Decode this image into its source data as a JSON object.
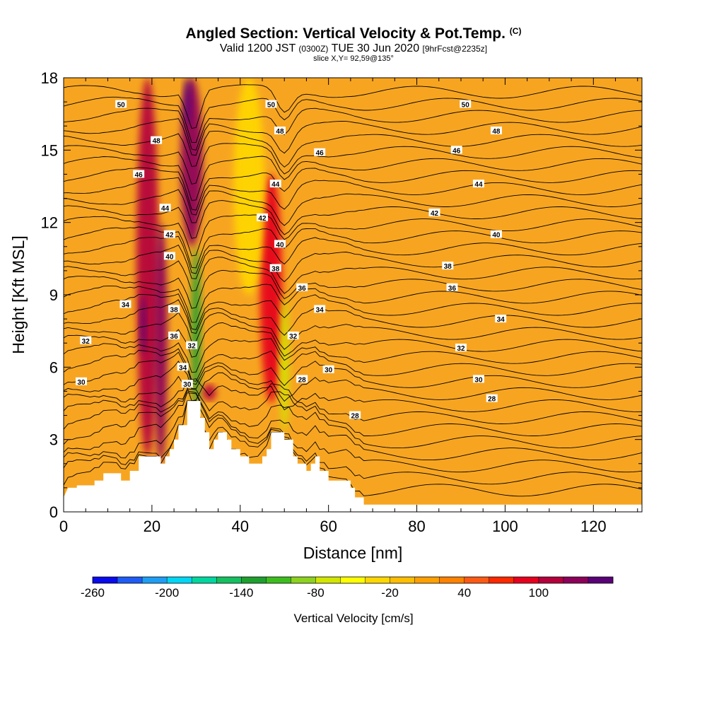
{
  "header": {
    "title_main": "Angled Section: Vertical Velocity & Pot.Temp.",
    "title_tag": "(C)",
    "valid_prefix": "Valid 1200 JST",
    "valid_utc": "(0300Z)",
    "valid_date": "TUE 30 Jun 2020",
    "forecast_info": "[9hrFcst@2235z]",
    "slice_info": "slice X,Y= 92,59@135°"
  },
  "chart_data": {
    "type": "heatmap",
    "xlabel": "Distance [nm]",
    "ylabel": "Height [Kft MSL]",
    "xlim": [
      0,
      131
    ],
    "ylim": [
      0,
      18
    ],
    "x_ticks": [
      0,
      20,
      40,
      60,
      80,
      100,
      120
    ],
    "y_ticks": [
      0,
      3,
      6,
      9,
      12,
      15,
      18
    ],
    "background_color": "#f7a521",
    "terrain": [
      [
        0,
        0.6
      ],
      [
        1,
        1.0
      ],
      [
        3,
        1.0
      ],
      [
        3,
        1.1
      ],
      [
        7,
        1.1
      ],
      [
        7,
        1.3
      ],
      [
        9,
        1.3
      ],
      [
        9,
        1.6
      ],
      [
        13,
        1.6
      ],
      [
        13,
        1.3
      ],
      [
        15,
        1.3
      ],
      [
        15,
        1.7
      ],
      [
        17,
        1.7
      ],
      [
        17,
        2.3
      ],
      [
        22,
        2.3
      ],
      [
        22,
        2.0
      ],
      [
        23,
        2.0
      ],
      [
        23,
        2.3
      ],
      [
        24,
        2.3
      ],
      [
        24,
        2.6
      ],
      [
        25,
        2.6
      ],
      [
        25,
        3.0
      ],
      [
        26,
        3.0
      ],
      [
        26,
        3.6
      ],
      [
        28,
        3.6
      ],
      [
        28,
        4.6
      ],
      [
        31,
        4.6
      ],
      [
        31,
        3.9
      ],
      [
        32,
        3.9
      ],
      [
        32,
        3.3
      ],
      [
        33,
        3.3
      ],
      [
        33,
        2.6
      ],
      [
        34,
        2.6
      ],
      [
        34,
        3.0
      ],
      [
        35,
        3.0
      ],
      [
        35,
        3.3
      ],
      [
        37,
        3.3
      ],
      [
        37,
        3.0
      ],
      [
        38,
        3.0
      ],
      [
        38,
        2.6
      ],
      [
        40,
        2.6
      ],
      [
        40,
        2.3
      ],
      [
        42,
        2.3
      ],
      [
        42,
        2.0
      ],
      [
        45,
        2.0
      ],
      [
        45,
        2.3
      ],
      [
        46,
        2.3
      ],
      [
        46,
        2.6
      ],
      [
        47,
        2.6
      ],
      [
        47,
        3.3
      ],
      [
        50,
        3.3
      ],
      [
        50,
        3.0
      ],
      [
        52,
        3.0
      ],
      [
        52,
        2.3
      ],
      [
        53,
        2.3
      ],
      [
        53,
        2.0
      ],
      [
        55,
        2.0
      ],
      [
        55,
        1.7
      ],
      [
        56,
        1.7
      ],
      [
        56,
        2.0
      ],
      [
        57,
        2.0
      ],
      [
        57,
        2.3
      ],
      [
        58,
        2.3
      ],
      [
        58,
        1.7
      ],
      [
        60,
        1.7
      ],
      [
        60,
        1.3
      ],
      [
        65,
        1.3
      ],
      [
        65,
        1.0
      ],
      [
        66,
        1.0
      ],
      [
        66,
        0.6
      ],
      [
        68,
        0.6
      ],
      [
        68,
        0.3
      ],
      [
        131,
        0.3
      ]
    ],
    "velocity_features": [
      {
        "label": "updraft",
        "x": 19,
        "y_bottom": 2.3,
        "y_top": 18,
        "width": 5,
        "value": 80
      },
      {
        "label": "updraft",
        "x": 22,
        "y_bottom": 2.0,
        "y_top": 12,
        "width": 3,
        "value": 100
      },
      {
        "label": "updraft-core",
        "x": 18,
        "y_bottom": 6.5,
        "y_top": 9,
        "width": 1.2,
        "value": 110
      },
      {
        "label": "updraft",
        "x": 29,
        "y_bottom": 11,
        "y_top": 18,
        "width": 5,
        "value": 90
      },
      {
        "label": "updraft-core",
        "x": 28,
        "y_bottom": 16,
        "y_top": 18,
        "width": 1.5,
        "value": 110
      },
      {
        "label": "updraft",
        "x": 47,
        "y_bottom": 4.5,
        "y_top": 14,
        "width": 5,
        "value": 60
      },
      {
        "label": "updraft",
        "x": 33,
        "y_bottom": 4.6,
        "y_top": 5.3,
        "width": 3,
        "value": 70
      },
      {
        "label": "downdraft",
        "x": 30,
        "y_bottom": 4.0,
        "y_top": 11,
        "width": 2,
        "value": -170
      },
      {
        "label": "downdraft",
        "x": 42,
        "y_bottom": 9,
        "y_top": 18,
        "width": 7,
        "value": -60
      },
      {
        "label": "downdraft",
        "x": 50,
        "y_bottom": 3.3,
        "y_top": 9,
        "width": 2,
        "value": -110
      }
    ],
    "contour_labels": [
      {
        "x": 13,
        "y": 16.9,
        "text": "50"
      },
      {
        "x": 47,
        "y": 16.9,
        "text": "50"
      },
      {
        "x": 91,
        "y": 16.9,
        "text": "50"
      },
      {
        "x": 21,
        "y": 15.4,
        "text": "48"
      },
      {
        "x": 49,
        "y": 15.8,
        "text": "48"
      },
      {
        "x": 98,
        "y": 15.8,
        "text": "48"
      },
      {
        "x": 17,
        "y": 14.0,
        "text": "46"
      },
      {
        "x": 58,
        "y": 14.9,
        "text": "46"
      },
      {
        "x": 89,
        "y": 15.0,
        "text": "46"
      },
      {
        "x": 23,
        "y": 12.6,
        "text": "44"
      },
      {
        "x": 48,
        "y": 13.6,
        "text": "44"
      },
      {
        "x": 94,
        "y": 13.6,
        "text": "44"
      },
      {
        "x": 24,
        "y": 11.5,
        "text": "42"
      },
      {
        "x": 45,
        "y": 12.2,
        "text": "42"
      },
      {
        "x": 84,
        "y": 12.4,
        "text": "42"
      },
      {
        "x": 24,
        "y": 10.6,
        "text": "40"
      },
      {
        "x": 49,
        "y": 11.1,
        "text": "40"
      },
      {
        "x": 98,
        "y": 11.5,
        "text": "40"
      },
      {
        "x": 48,
        "y": 10.1,
        "text": "38"
      },
      {
        "x": 87,
        "y": 10.2,
        "text": "38"
      },
      {
        "x": 25,
        "y": 8.4,
        "text": "38"
      },
      {
        "x": 54,
        "y": 9.3,
        "text": "36"
      },
      {
        "x": 88,
        "y": 9.3,
        "text": "36"
      },
      {
        "x": 25,
        "y": 7.3,
        "text": "36"
      },
      {
        "x": 14,
        "y": 8.6,
        "text": "34"
      },
      {
        "x": 58,
        "y": 8.4,
        "text": "34"
      },
      {
        "x": 99,
        "y": 8.0,
        "text": "34"
      },
      {
        "x": 27,
        "y": 6.0,
        "text": "34"
      },
      {
        "x": 5,
        "y": 7.1,
        "text": "32"
      },
      {
        "x": 52,
        "y": 7.3,
        "text": "32"
      },
      {
        "x": 90,
        "y": 6.8,
        "text": "32"
      },
      {
        "x": 29,
        "y": 6.9,
        "text": "32"
      },
      {
        "x": 4,
        "y": 5.4,
        "text": "30"
      },
      {
        "x": 60,
        "y": 5.9,
        "text": "30"
      },
      {
        "x": 94,
        "y": 5.5,
        "text": "30"
      },
      {
        "x": 28,
        "y": 5.3,
        "text": "30"
      },
      {
        "x": 54,
        "y": 5.5,
        "text": "28"
      },
      {
        "x": 97,
        "y": 4.7,
        "text": "28"
      },
      {
        "x": 66,
        "y": 4.0,
        "text": "28"
      }
    ]
  },
  "colorbar": {
    "title": "Vertical Velocity [cm/s]",
    "tick_labels": [
      "-260",
      "-200",
      "-140",
      "-80",
      "-20",
      "40",
      "100"
    ],
    "colors": [
      "#0a0aee",
      "#1e5cf5",
      "#1e9ef5",
      "#00d7f5",
      "#00d7a0",
      "#14c060",
      "#1ea02e",
      "#3cbe1e",
      "#8cd21e",
      "#d2e600",
      "#ffff00",
      "#ffd700",
      "#ffbe00",
      "#ffa000",
      "#ff8200",
      "#ff5a14",
      "#ff2800",
      "#e6001e",
      "#b4003c",
      "#8c005a",
      "#5a0078"
    ]
  }
}
